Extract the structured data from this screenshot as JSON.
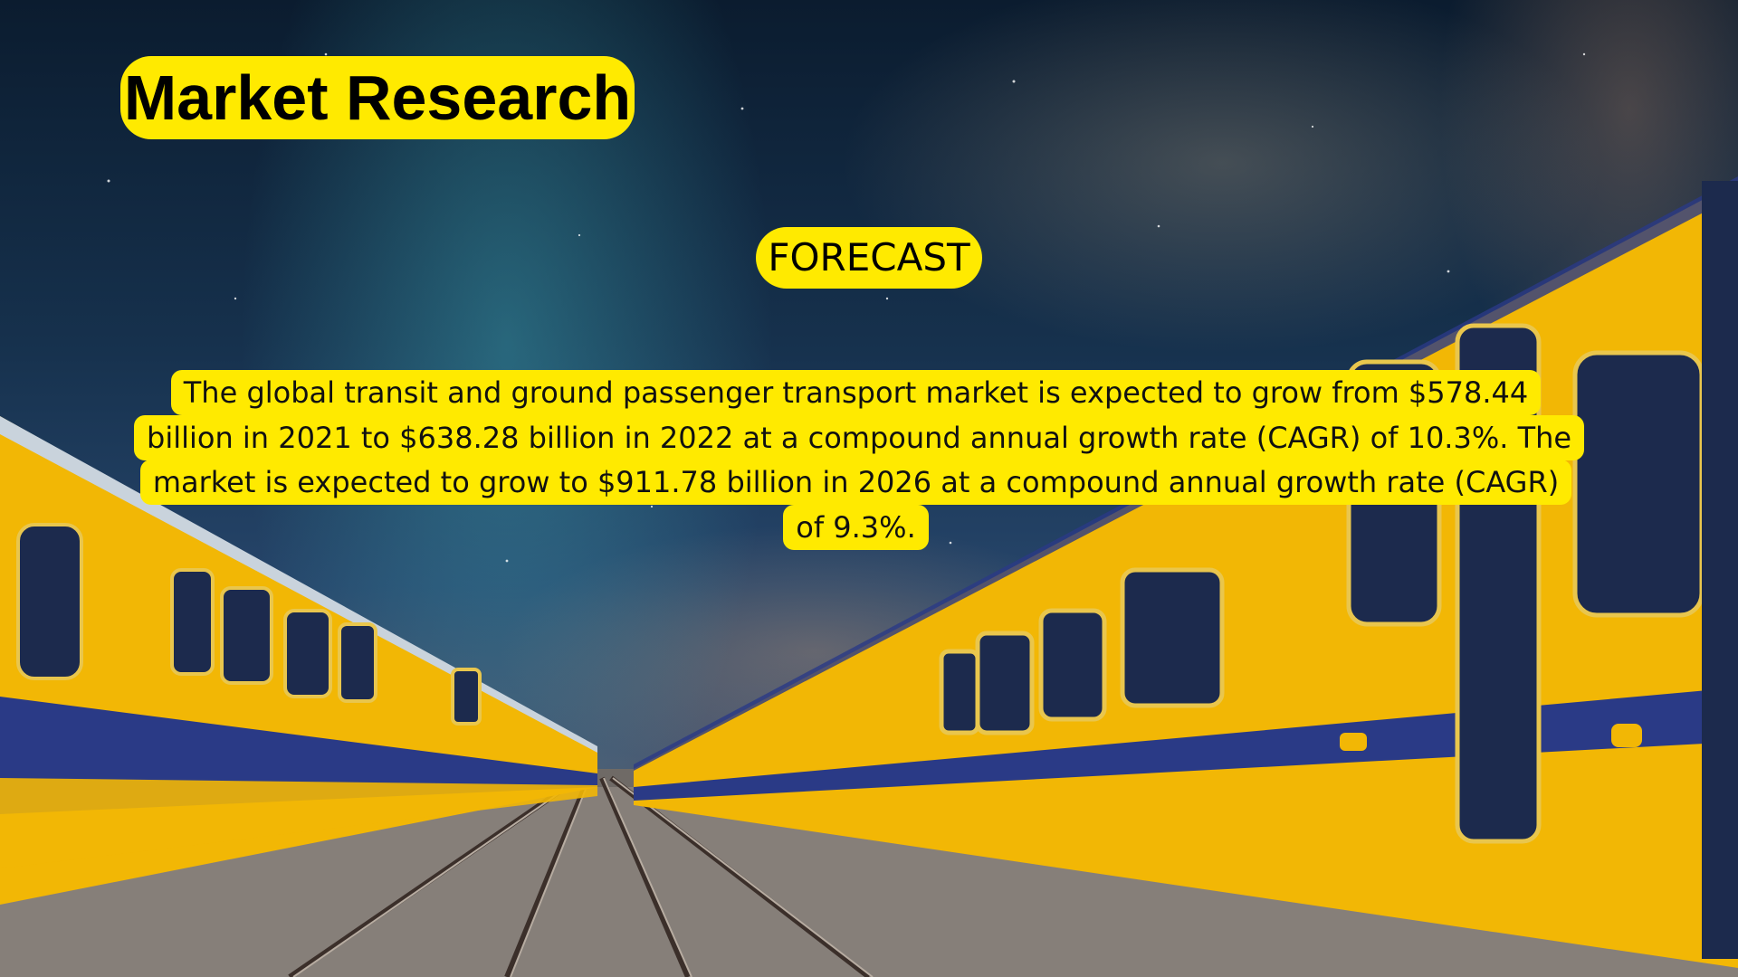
{
  "header": {
    "title": "Market Research"
  },
  "section": {
    "label": "FORECAST"
  },
  "content": {
    "paragraph": "The global transit and ground passenger transport market is expected to grow from $578.44 billion in 2021 to $638.28 billion in 2022 at a compound annual growth rate (CAGR) of 10.3%. The market is expected to grow to $911.78 billion in 2026 at a compound annual growth rate (CAGR) of 9.3%."
  },
  "colors": {
    "highlight": "#ffea00",
    "train_yellow": "#f2b705",
    "train_blue": "#2a3a86"
  }
}
